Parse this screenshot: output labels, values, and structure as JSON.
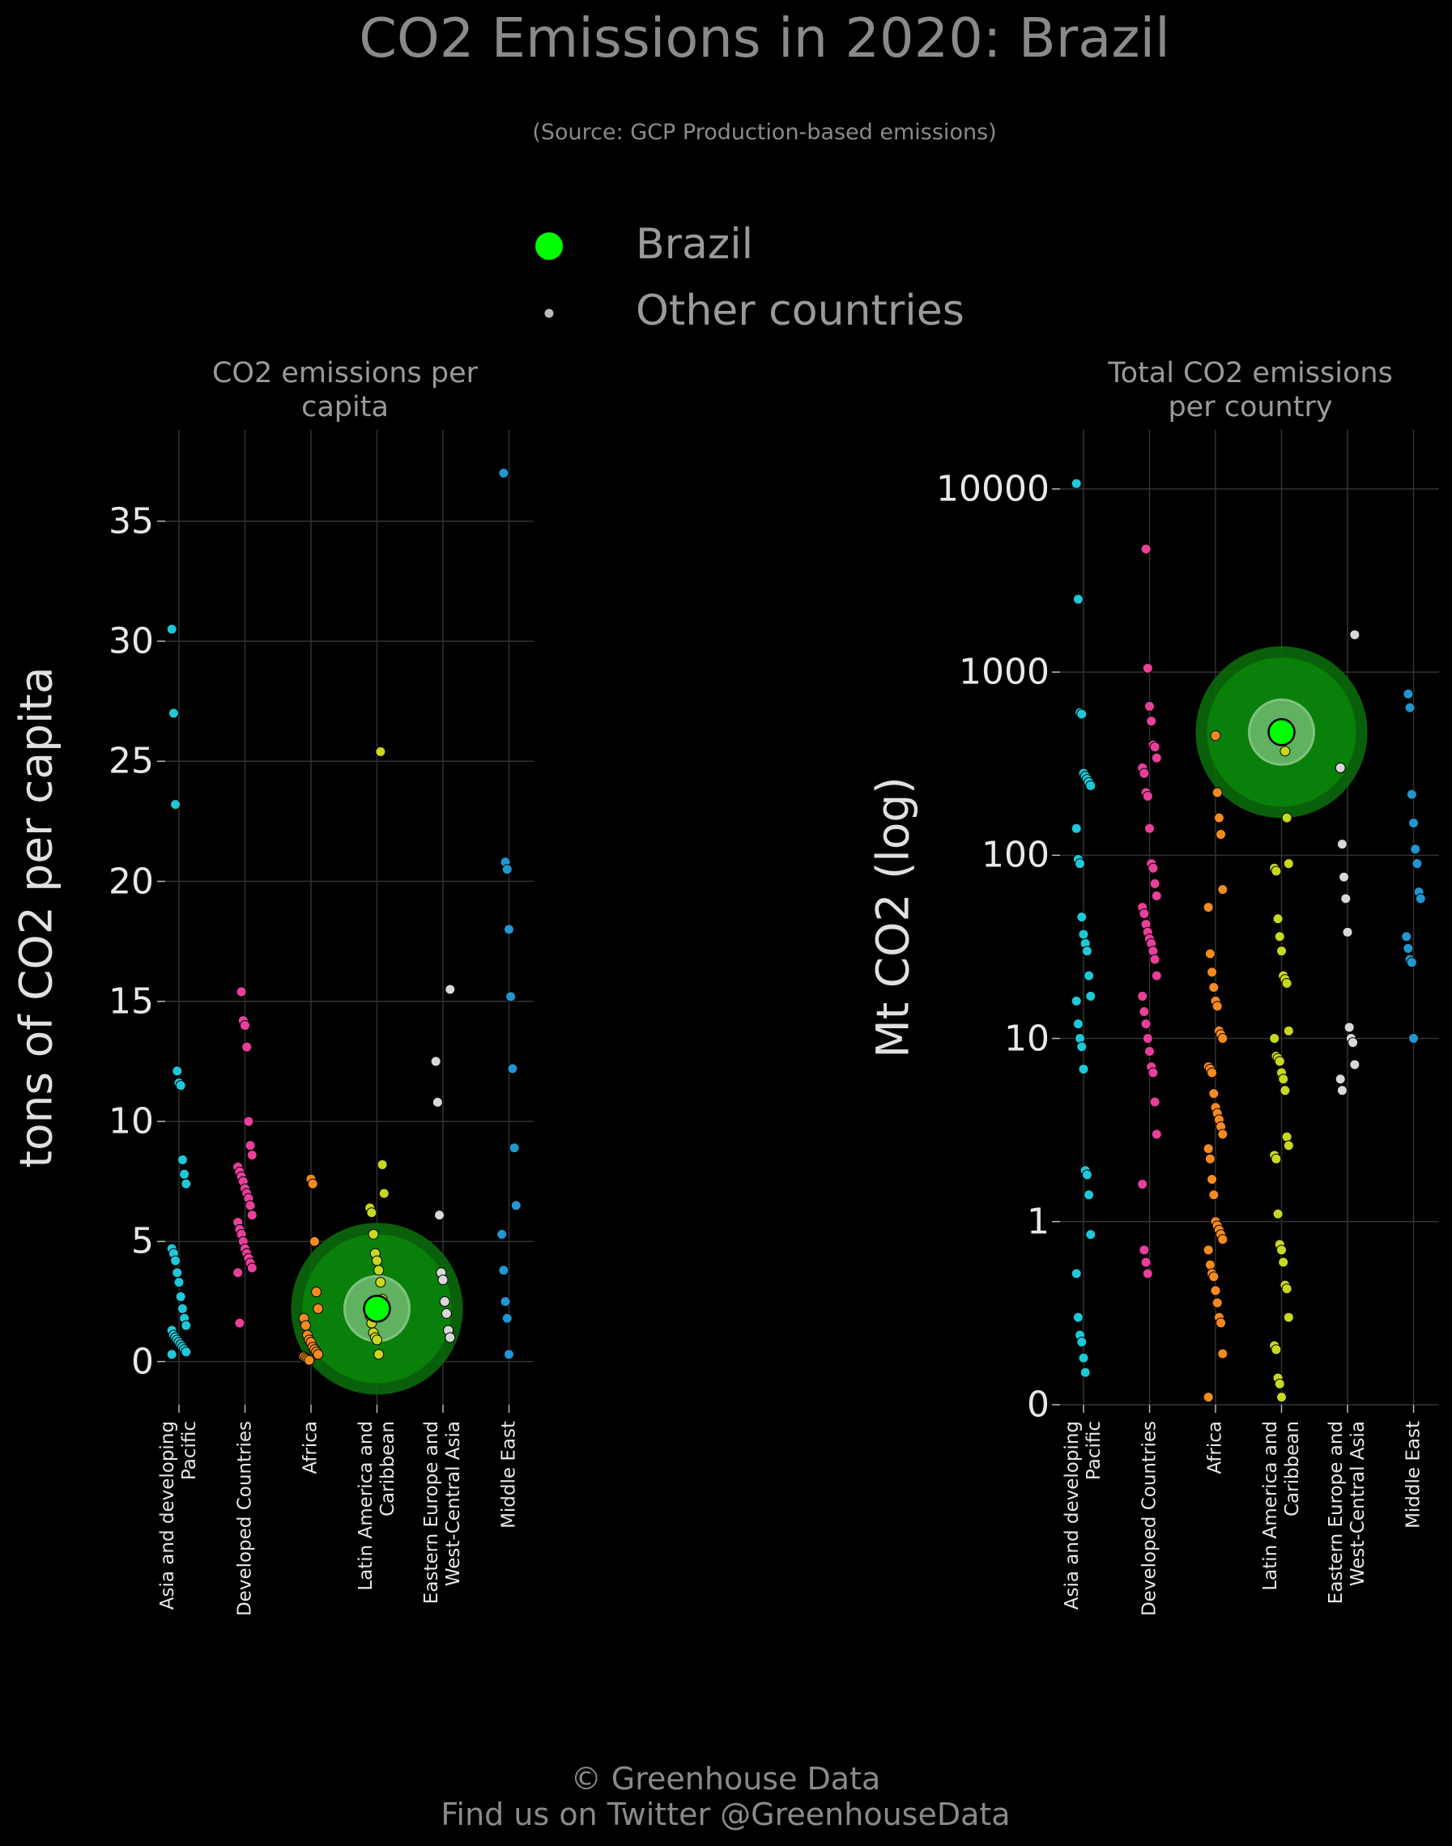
{
  "title": "CO2 Emissions in 2020: Brazil",
  "subtitle": "(Source: GCP Production-based emissions)",
  "legend": [
    {
      "name": "Brazil",
      "color": "#00ff00"
    },
    {
      "name": "Other countries",
      "color": "#bbbbbb"
    }
  ],
  "footer": [
    "© Greenhouse Data",
    "Find us on Twitter @GreenhouseData"
  ],
  "chart_data": [
    {
      "type": "strip",
      "title": "CO2 emissions per capita",
      "ylabel": "tons of CO2 per capita",
      "categories": [
        "Asia and developing Pacific",
        "Developed Countries",
        "Africa",
        "Latin America and Caribbean",
        "Eastern Europe and West-Central Asia",
        "Middle East"
      ],
      "colors": [
        "#1ec8d8",
        "#e8409a",
        "#f58a20",
        "#c8d820",
        "#d8d8d8",
        "#2196d0"
      ],
      "values": [
        [
          30.5,
          27,
          23.2,
          12.1,
          11.6,
          11.5,
          8.4,
          7.8,
          7.4,
          4.7,
          4.5,
          4.2,
          3.7,
          3.3,
          2.7,
          2.2,
          1.8,
          1.5,
          1.3,
          1.1,
          1.0,
          0.9,
          0.8,
          0.7,
          0.6,
          0.5,
          0.4,
          0.3
        ],
        [
          15.4,
          14.2,
          14.0,
          13.1,
          10.0,
          9.0,
          8.6,
          8.1,
          7.9,
          7.7,
          7.5,
          7.2,
          7.0,
          6.8,
          6.5,
          6.1,
          5.8,
          5.5,
          5.3,
          5.0,
          4.7,
          4.5,
          4.3,
          4.1,
          3.9,
          3.7,
          1.6
        ],
        [
          7.6,
          7.4,
          5.0,
          2.9,
          2.2,
          1.8,
          1.5,
          1.1,
          0.9,
          0.8,
          0.6,
          0.5,
          0.4,
          0.3,
          0.2,
          0.15,
          0.1,
          0.05
        ],
        [
          25.4,
          8.2,
          7.0,
          6.4,
          6.2,
          5.3,
          4.5,
          4.2,
          3.8,
          3.3,
          2.6,
          2.2,
          1.9,
          1.6,
          1.2,
          1.0,
          0.9,
          0.3
        ],
        [
          15.5,
          12.5,
          10.8,
          6.1,
          3.7,
          3.4,
          2.5,
          2.0,
          1.3,
          1.0
        ],
        [
          37.0,
          20.8,
          20.5,
          18.0,
          15.2,
          12.2,
          8.9,
          6.5,
          5.3,
          3.8,
          2.5,
          1.8,
          0.3
        ]
      ],
      "highlight": {
        "category": 3,
        "value": 2.2
      },
      "ylim": [
        -1.8,
        38.8
      ],
      "yticks": [
        0,
        5,
        10,
        15,
        20,
        25,
        30,
        35
      ],
      "log": false,
      "grid": true
    },
    {
      "type": "strip",
      "title": "Total CO2 emissions per country",
      "ylabel": "Mt CO2 (log)",
      "categories": [
        "Asia and developing Pacific",
        "Developed Countries",
        "Africa",
        "Latin America and Caribbean",
        "Eastern Europe and West-Central Asia",
        "Middle East"
      ],
      "colors": [
        "#1ec8d8",
        "#e8409a",
        "#f58a20",
        "#c8d820",
        "#d8d8d8",
        "#2196d0"
      ],
      "values": [
        [
          10700,
          2500,
          600,
          590,
          280,
          270,
          260,
          250,
          240,
          140,
          95,
          90,
          46,
          37,
          33,
          30,
          22,
          17,
          16,
          12,
          10,
          9,
          6.8,
          1.9,
          1.8,
          1.4,
          0.85,
          0.52,
          0.3,
          0.24,
          0.22,
          0.18,
          0.15
        ],
        [
          4700,
          1050,
          650,
          540,
          400,
          390,
          340,
          300,
          280,
          220,
          210,
          140,
          90,
          85,
          70,
          60,
          52,
          48,
          42,
          38,
          35,
          33,
          30,
          27,
          22,
          17,
          14,
          12,
          10,
          8.5,
          7,
          6.5,
          4.5,
          3,
          1.6,
          0.7,
          0.6,
          0.52
        ],
        [
          450,
          220,
          160,
          130,
          65,
          52,
          29,
          23,
          19,
          16,
          15,
          11,
          10.5,
          10,
          7,
          6.8,
          6.5,
          5,
          4.2,
          3.9,
          3.6,
          3.3,
          3,
          2.5,
          2.2,
          1.7,
          1.4,
          1.0,
          0.95,
          0.9,
          0.85,
          0.8,
          0.7,
          0.58,
          0.52,
          0.5,
          0.42,
          0.36,
          0.3,
          0.28,
          0.19,
          0.11
        ],
        [
          370,
          160,
          90,
          85,
          82,
          45,
          36,
          30,
          22,
          21,
          20,
          11,
          10,
          8,
          7.8,
          7.5,
          6.5,
          6,
          5.2,
          2.9,
          2.6,
          2.3,
          2.2,
          1.1,
          0.75,
          0.7,
          0.6,
          0.45,
          0.43,
          0.3,
          0.21,
          0.2,
          0.14,
          0.13,
          0.11
        ],
        [
          1600,
          300,
          115,
          76,
          58,
          38,
          11.5,
          10,
          9.5,
          7.2,
          6,
          5.2
        ],
        [
          760,
          640,
          215,
          150,
          108,
          90,
          63,
          58,
          36,
          31,
          27,
          26,
          10
        ]
      ],
      "highlight": {
        "category": 3,
        "value": 470
      },
      "ylim": [
        0.1,
        21000
      ],
      "yticks": [
        {
          "value": 0.1,
          "label": "0"
        },
        1,
        10,
        100,
        1000,
        10000
      ],
      "log": true,
      "grid": true
    }
  ]
}
